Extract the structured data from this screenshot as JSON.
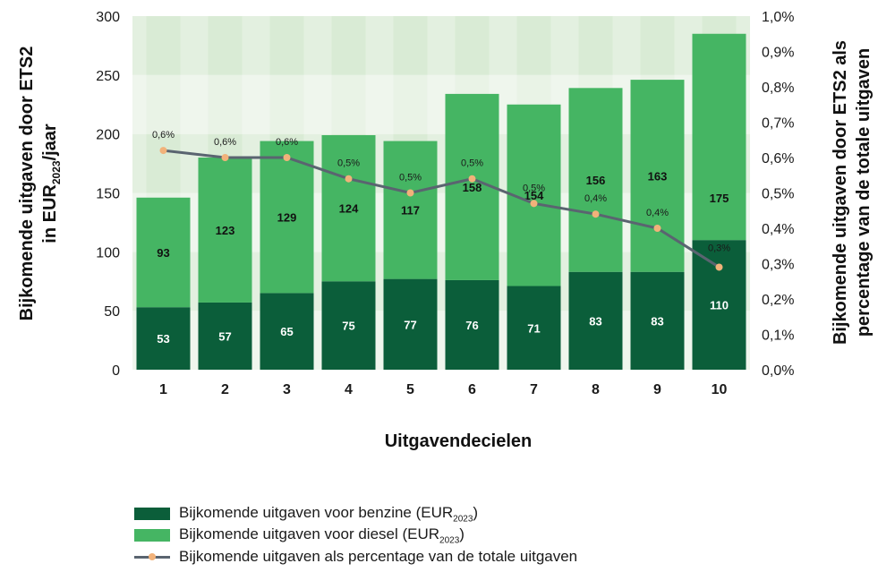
{
  "chart_data": {
    "type": "bar",
    "stacked": true,
    "categories": [
      "1",
      "2",
      "3",
      "4",
      "5",
      "6",
      "7",
      "8",
      "9",
      "10"
    ],
    "series": [
      {
        "name": "Bijkomende uitgaven voor benzine (EUR2023)",
        "values": [
          53,
          57,
          65,
          75,
          77,
          76,
          71,
          83,
          83,
          110
        ],
        "color": "#0b5e3a",
        "label_color": "#ffffff"
      },
      {
        "name": "Bijkomende uitgaven voor diesel (EUR2023)",
        "values": [
          93,
          123,
          129,
          124,
          117,
          158,
          154,
          156,
          163,
          175
        ],
        "color": "#45b563",
        "label_color": "#111111"
      }
    ],
    "line_series": {
      "name": "Bijkomende uitgaven als percentage van de totale uitgaven",
      "axis": "right",
      "values": [
        0.62,
        0.6,
        0.6,
        0.54,
        0.5,
        0.54,
        0.47,
        0.44,
        0.4,
        0.29
      ],
      "labels": [
        "0,6%",
        "0,6%",
        "0,6%",
        "0,5%",
        "0,5%",
        "0,5%",
        "0,5%",
        "0,4%",
        "0,4%",
        "0,3%"
      ],
      "line_color": "#5a6470",
      "marker_color": "#f2b27a"
    },
    "xlabel": "Uitgavendecielen",
    "ylabel_left": {
      "line1": "Bijkomende uitgaven door ETS2",
      "line2_main": "in EUR",
      "line2_sub": "2023",
      "line2_end": "/jaar"
    },
    "ylabel_right": {
      "line1": "Bijkomende uitgaven door ETS2 als",
      "line2": "percentage van de totale uitgaven"
    },
    "ylim_left": [
      0,
      300
    ],
    "yticks_left": [
      0,
      50,
      100,
      150,
      200,
      250,
      300
    ],
    "ylim_right": [
      0,
      1.0
    ],
    "yticks_right_labels": [
      "0,0%",
      "0,1%",
      "0,2%",
      "0,3%",
      "0,4%",
      "0,5%",
      "0,6%",
      "0,7%",
      "0,8%",
      "0,9%",
      "1,0%"
    ],
    "background_bands": [
      "#e9f3e6",
      "#d9ebd5"
    ],
    "legend_position": "bottom-left"
  },
  "legend": {
    "benzine": {
      "text": "Bijkomende uitgaven voor benzine (EUR",
      "sub": "2023",
      "end": ")"
    },
    "diesel": {
      "text": "Bijkomende uitgaven voor diesel (EUR",
      "sub": "2023",
      "end": ")"
    },
    "percentage": "Bijkomende uitgaven als percentage van de totale uitgaven"
  }
}
